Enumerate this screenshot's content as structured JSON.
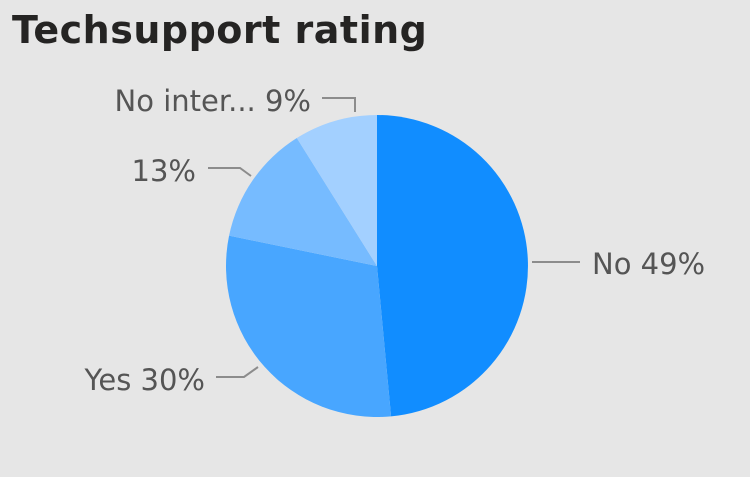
{
  "chart_data": {
    "type": "pie",
    "title": "Techsupport rating",
    "slices": [
      {
        "label": "No",
        "value": 49,
        "display": "No 49%",
        "color": "#118dff"
      },
      {
        "label": "Yes",
        "value": 30,
        "display": "Yes 30%",
        "color": "#48a6ff"
      },
      {
        "label": "",
        "value": 13,
        "display": "13%",
        "color": "#76bbff"
      },
      {
        "label": "No inter...",
        "value": 9,
        "display": "No inter... 9%",
        "color": "#a3d0ff"
      }
    ],
    "leader_color": "#8c8c8c"
  }
}
